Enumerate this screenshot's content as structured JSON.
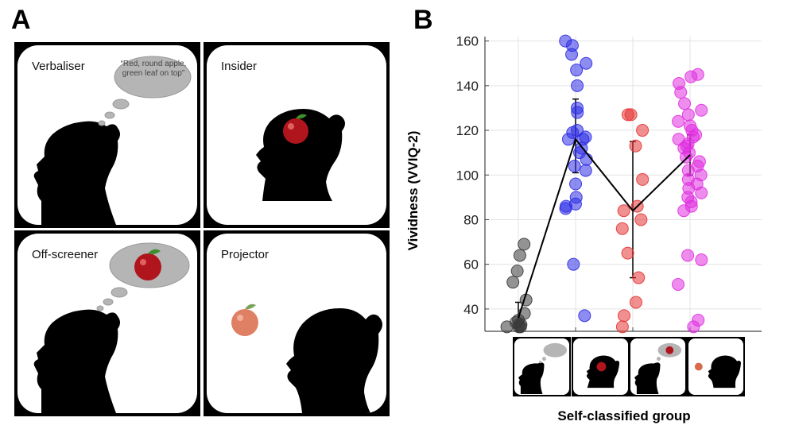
{
  "panel_a": {
    "letter": "A",
    "cards": [
      {
        "label": "Verbaliser",
        "thought": "“Red, round apple, green leaf on top”"
      },
      {
        "label": "Insider"
      },
      {
        "label": "Off-screener"
      },
      {
        "label": "Projector"
      }
    ]
  },
  "panel_b": {
    "letter": "B",
    "mini_icons": [
      "verbaliser-icon",
      "insider-icon",
      "off-screener-icon",
      "projector-icon"
    ]
  },
  "chart_data": {
    "type": "scatter",
    "title": "",
    "xlabel": "Self-classified group",
    "ylabel": "Vividness (VVIQ-2)",
    "ylim": [
      30,
      162
    ],
    "yticks": [
      40,
      60,
      80,
      100,
      120,
      140,
      160
    ],
    "grid": true,
    "categories": [
      "Verbaliser",
      "Insider",
      "Off-screener",
      "Projector"
    ],
    "colors": [
      "#3a3a3a",
      "#2d2de6",
      "#e53535",
      "#e030e0"
    ],
    "means": [
      36,
      116,
      84,
      109
    ],
    "error_low": [
      32,
      101,
      54,
      100
    ],
    "error_high": [
      43,
      134,
      115,
      118
    ],
    "series": [
      {
        "name": "Verbaliser",
        "values": [
          69,
          64,
          57,
          52,
          44,
          38,
          35,
          33,
          32,
          32,
          32,
          33,
          34
        ]
      },
      {
        "name": "Insider",
        "values": [
          160,
          158,
          154,
          150,
          147,
          140,
          130,
          128,
          120,
          119,
          117,
          116,
          116,
          112,
          110,
          107,
          104,
          102,
          96,
          90,
          87,
          86,
          85,
          60,
          37
        ]
      },
      {
        "name": "Off-screener",
        "values": [
          127,
          127,
          120,
          113,
          98,
          86,
          84,
          80,
          76,
          65,
          54,
          43,
          37,
          32
        ]
      },
      {
        "name": "Projector",
        "values": [
          145,
          144,
          141,
          137,
          132,
          129,
          127,
          124,
          122,
          120,
          118,
          117,
          116,
          114,
          113,
          112,
          110,
          108,
          106,
          104,
          102,
          100,
          98,
          96,
          94,
          92,
          90,
          88,
          86,
          84,
          64,
          62,
          51,
          35,
          32
        ]
      }
    ]
  }
}
